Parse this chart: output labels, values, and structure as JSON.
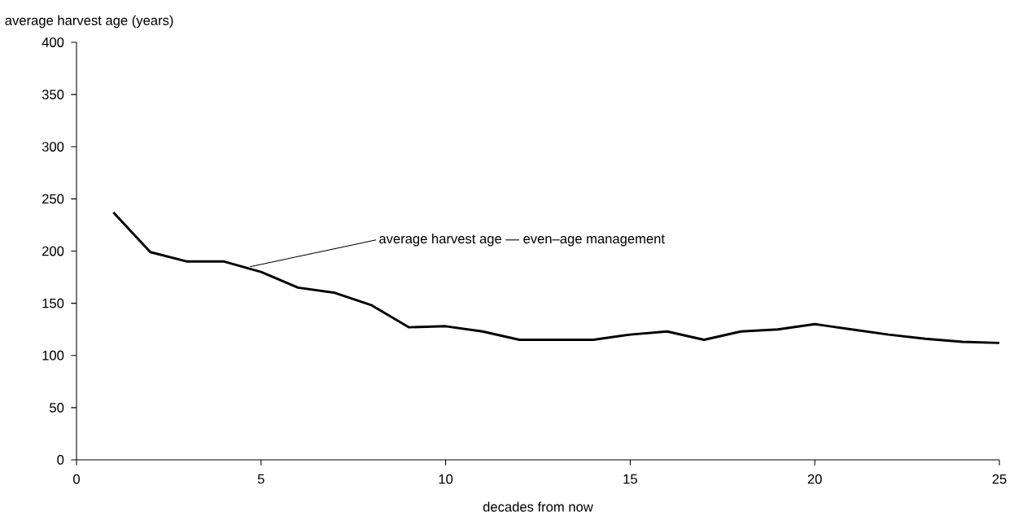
{
  "chart_data": {
    "type": "line",
    "xlabel": "decades from now",
    "ylabel": "average harvest age (years)",
    "x": [
      1,
      2,
      3,
      4,
      5,
      6,
      7,
      8,
      9,
      10,
      11,
      12,
      13,
      14,
      15,
      16,
      17,
      18,
      19,
      20,
      21,
      22,
      23,
      24,
      25
    ],
    "series": [
      {
        "color": "#000000",
        "values": [
          237,
          199,
          190,
          190,
          180,
          165,
          160,
          148,
          127,
          128,
          123,
          115,
          115,
          115,
          120,
          123,
          115,
          123,
          125,
          130,
          125,
          120,
          116,
          113,
          112
        ]
      }
    ],
    "xlim": [
      0,
      25
    ],
    "xticks": [
      0,
      5,
      10,
      15,
      20,
      25
    ],
    "ylim": [
      0,
      400
    ],
    "yticks": [
      0,
      50,
      100,
      150,
      200,
      250,
      300,
      350,
      400
    ],
    "marker": "none",
    "line_style": "solid",
    "annotations": [
      {
        "text": "average harvest age — even–age management",
        "x": 4.7,
        "y": 185
      }
    ]
  }
}
